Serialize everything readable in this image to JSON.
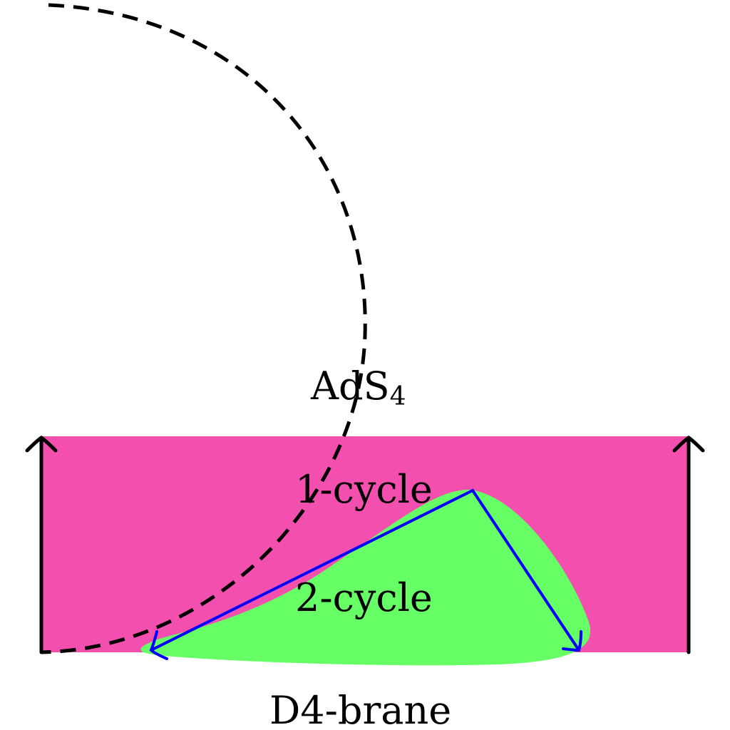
{
  "labels": {
    "ads_base": "AdS",
    "ads_sub": "4",
    "one_cycle": "1-cycle",
    "two_cycle": "2-cycle",
    "brane": "D4-brane"
  },
  "colors": {
    "region": "#f24fae",
    "surface": "#66ff66",
    "arrow": "#0000ff",
    "stroke": "#000000",
    "background": "#ffffff"
  }
}
